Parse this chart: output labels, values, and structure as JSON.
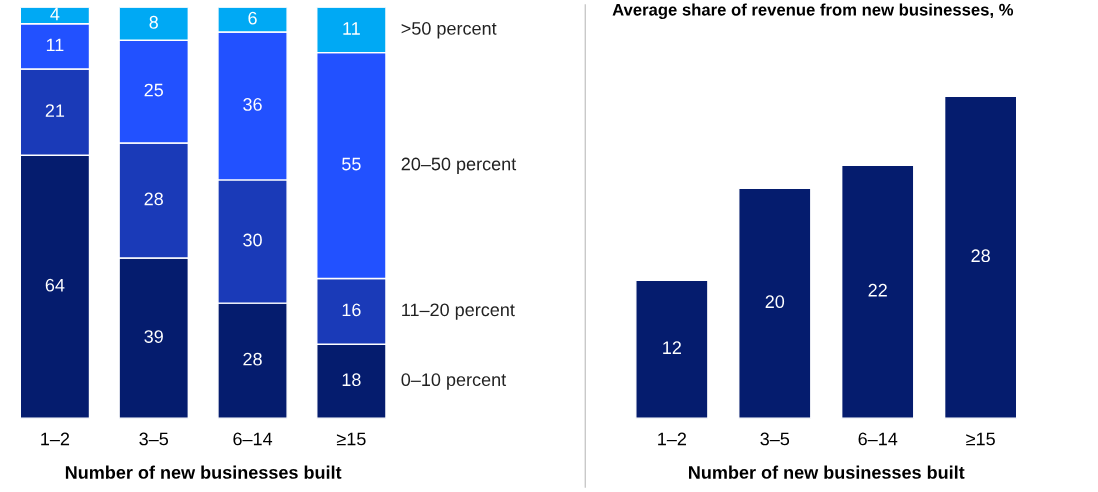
{
  "chart_data": [
    {
      "type": "bar",
      "stacked": true,
      "categories": [
        "1–2",
        "3–5",
        "6–14",
        "≥15"
      ],
      "xlabel": "Number of new businesses built",
      "data_labels": true,
      "legend": "right",
      "series": [
        {
          "name": "0–10 percent",
          "color": "#051c6e",
          "values": [
            64,
            39,
            28,
            18
          ]
        },
        {
          "name": "11–20 percent",
          "color": "#1a3ab8",
          "values": [
            21,
            28,
            30,
            16
          ]
        },
        {
          "name": "20–50 percent",
          "color": "#2251ff",
          "values": [
            11,
            25,
            36,
            55
          ]
        },
        {
          "name": ">50 percent",
          "color": "#00a9f4",
          "values": [
            4,
            8,
            6,
            11
          ]
        }
      ]
    },
    {
      "type": "bar",
      "title": "Average share of revenue from new businesses, %",
      "categories": [
        "1–2",
        "3–5",
        "6–14",
        "≥15"
      ],
      "xlabel": "Number of new businesses built",
      "data_labels": true,
      "series": [
        {
          "color": "#051c6e",
          "values": [
            12,
            20,
            22,
            28
          ]
        }
      ]
    }
  ]
}
